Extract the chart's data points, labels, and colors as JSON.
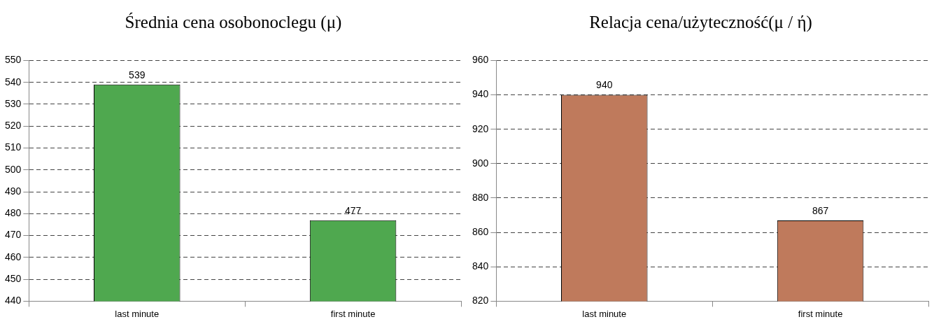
{
  "chart_data": [
    {
      "type": "bar",
      "title": "Średnia cena osobonoclegu (μ)",
      "categories": [
        "last minute",
        "first minute"
      ],
      "values": [
        539,
        477
      ],
      "color": "#4fa84f",
      "ylim": [
        440,
        550
      ],
      "yticks": [
        440,
        450,
        460,
        470,
        480,
        490,
        500,
        510,
        520,
        530,
        540,
        550
      ],
      "grid": "y",
      "data_labels": true
    },
    {
      "type": "bar",
      "title": "Relacja cena/użyteczność(μ / ή)",
      "categories": [
        "last minute",
        "first minute"
      ],
      "values": [
        940,
        867
      ],
      "color": "#bf7a5c",
      "ylim": [
        820,
        960
      ],
      "yticks": [
        820,
        840,
        860,
        880,
        900,
        920,
        940,
        960
      ],
      "grid": "y",
      "data_labels": true
    }
  ]
}
